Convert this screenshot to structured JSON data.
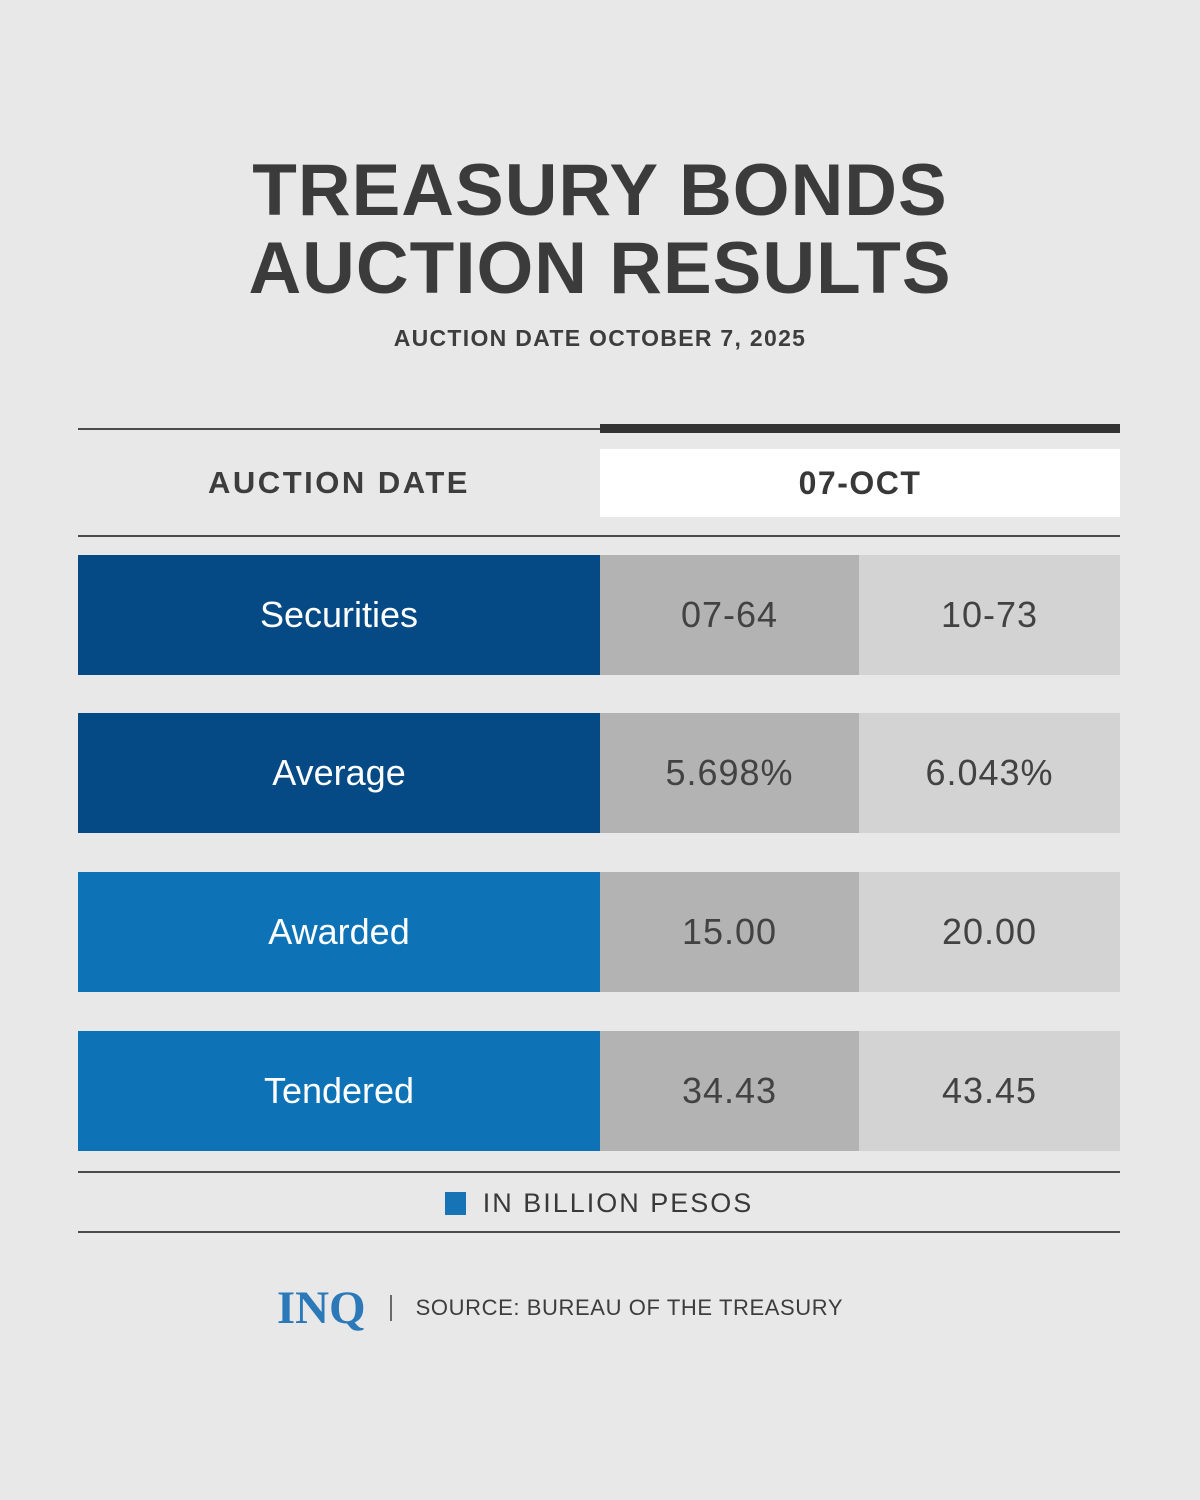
{
  "header": {
    "title_line1": "TREASURY BONDS",
    "title_line2": "AUCTION RESULTS",
    "subtitle": "AUCTION DATE OCTOBER 7, 2025"
  },
  "table": {
    "header": {
      "label": "AUCTION DATE",
      "value": "07-OCT"
    },
    "rows": [
      {
        "label": "Securities",
        "values": [
          "07-64",
          "10-73"
        ],
        "label_bg": "#054a84"
      },
      {
        "label": "Average",
        "values": [
          "5.698%",
          "6.043%"
        ],
        "label_bg": "#054a84"
      },
      {
        "label": "Awarded",
        "values": [
          "15.00",
          "20.00"
        ],
        "label_bg": "#0e73b6"
      },
      {
        "label": "Tendered",
        "values": [
          "34.43",
          "43.45"
        ],
        "label_bg": "#0e73b6"
      }
    ]
  },
  "legend": {
    "label": "IN BILLION PESOS",
    "square_color": "#1573b6"
  },
  "footer": {
    "logo": "INQ",
    "source": "SOURCE: BUREAU OF THE TREASURY"
  },
  "colors": {
    "background": "#e9e8e8",
    "title_text": "#3b3b3b",
    "dark_blue": "#054a84",
    "light_blue": "#0e73b6",
    "cell_bg_mid": "#b3b3b3",
    "cell_bg_light": "#d3d3d3",
    "rule": "#4b4b4b",
    "accent_bar": "#333333",
    "value_text": "#424242",
    "header_box_bg": "#ffffff",
    "inq_blue": "#2b79b8"
  },
  "chart_data": {
    "type": "table",
    "title": "TREASURY BONDS AUCTION RESULTS",
    "subtitle": "AUCTION DATE OCTOBER 7, 2025",
    "column_header": {
      "label": "AUCTION DATE",
      "value": "07-OCT"
    },
    "rows": [
      {
        "label": "Securities",
        "values": [
          "07-64",
          "10-73"
        ]
      },
      {
        "label": "Average",
        "values": [
          "5.698%",
          "6.043%"
        ]
      },
      {
        "label": "Awarded",
        "values": [
          15.0,
          20.0
        ]
      },
      {
        "label": "Tendered",
        "values": [
          34.43,
          43.45
        ]
      }
    ],
    "units_note": "IN BILLION PESOS (Awarded and Tendered amounts)",
    "source": "BUREAU OF THE TREASURY"
  }
}
